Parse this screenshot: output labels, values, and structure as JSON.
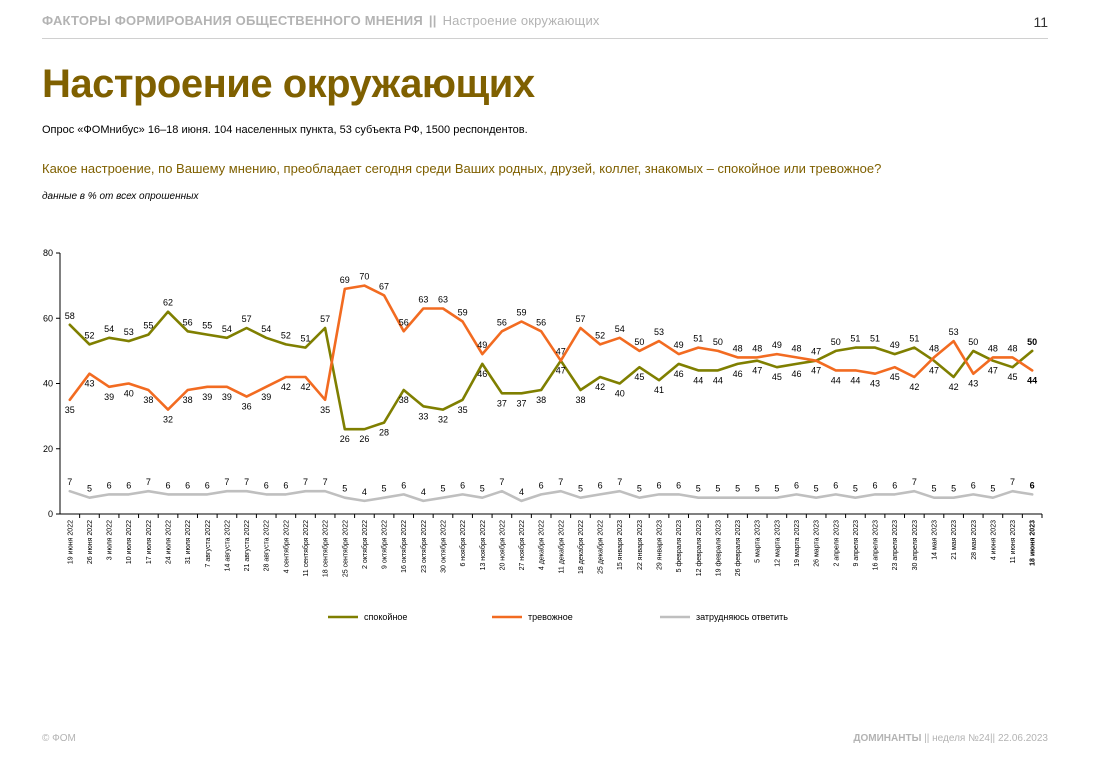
{
  "header": {
    "section": "ФАКТОРЫ ФОРМИРОВАНИЯ ОБЩЕСТВЕННОГО МНЕНИЯ",
    "separator": "||",
    "topic": "Настроение окружающих",
    "page_number": "11"
  },
  "title": "Настроение окружающих",
  "survey_note": "Опрос «ФОМнибус» 16–18 июня. 104 населенных пункта, 53 субъекта РФ, 1500 респондентов.",
  "question": "Какое настроение, по Вашему мнению, преобладает сегодня среди Ваших родных, друзей, коллег, знакомых – спокойное или тревожное?",
  "units_note": "данные в % от всех опрошенных",
  "footer": {
    "left": "© ФОМ",
    "right_brand": "ДОМИНАНТЫ",
    "right_sep": "||",
    "right_week": "неделя №24",
    "right_sep2": "||",
    "right_date": "22.06.2023"
  },
  "chart_data": {
    "type": "line",
    "ylim": [
      0,
      80
    ],
    "yticks": [
      0,
      20,
      40,
      60,
      80
    ],
    "grid": false,
    "legend_position": "bottom",
    "x": [
      "19 июня 2022",
      "26 июня 2022",
      "3 июля 2022",
      "10 июля 2022",
      "17 июля 2022",
      "24 июля 2022",
      "31 июля 2022",
      "7 августа 2022",
      "14 августа 2022",
      "21 августа 2022",
      "28 августа 2022",
      "4 сентября 2022",
      "11 сентября 2022",
      "18 сентября 2022",
      "25 сентября 2022",
      "2 октября 2022",
      "9 октября 2022",
      "16 октября 2022",
      "23 октября 2022",
      "30 октября 2022",
      "6 ноября 2022",
      "13 ноября 2022",
      "20 ноября 2022",
      "27 ноября 2022",
      "4 декабря 2022",
      "11 декабря 2022",
      "18 декабря 2022",
      "25 декабря 2022",
      "15 января 2023",
      "22 января 2023",
      "29 января 2023",
      "5 февраля 2023",
      "12 февраля 2023",
      "19 февраля 2023",
      "26 февраля 2023",
      "5 марта 2023",
      "12 марта 2023",
      "19 марта 2023",
      "26 марта 2023",
      "2 апреля 2023",
      "9 апреля 2023",
      "16 апреля 2023",
      "23 апреля 2023",
      "30 апреля 2023",
      "14 мая 2023",
      "21 мая 2023",
      "28 мая 2023",
      "4 июня 2023",
      "11 июня 2023",
      "18 июня 2023"
    ],
    "series": [
      {
        "name": "спокойное",
        "color": "#7f7f00",
        "values": [
          58,
          52,
          54,
          53,
          55,
          62,
          56,
          55,
          54,
          57,
          54,
          52,
          51,
          57,
          26,
          26,
          28,
          38,
          33,
          32,
          35,
          46,
          37,
          37,
          38,
          47,
          38,
          42,
          40,
          45,
          41,
          46,
          44,
          44,
          46,
          47,
          45,
          46,
          47,
          50,
          51,
          51,
          49,
          51,
          47,
          42,
          50,
          47,
          45,
          50
        ]
      },
      {
        "name": "тревожное",
        "color": "#f26b21",
        "values": [
          35,
          43,
          39,
          40,
          38,
          32,
          38,
          39,
          39,
          36,
          39,
          42,
          42,
          35,
          69,
          70,
          67,
          56,
          63,
          63,
          59,
          49,
          56,
          59,
          56,
          47,
          57,
          52,
          54,
          50,
          53,
          49,
          51,
          50,
          48,
          48,
          49,
          48,
          47,
          44,
          44,
          43,
          45,
          42,
          48,
          53,
          43,
          48,
          48,
          44
        ]
      },
      {
        "name": "затрудняюсь ответить",
        "color": "#bfbfbf",
        "values": [
          7,
          5,
          6,
          6,
          7,
          6,
          6,
          6,
          7,
          7,
          6,
          6,
          7,
          7,
          5,
          4,
          5,
          6,
          4,
          5,
          6,
          5,
          7,
          4,
          6,
          7,
          5,
          6,
          7,
          5,
          6,
          6,
          5,
          5,
          5,
          5,
          5,
          6,
          5,
          6,
          5,
          6,
          6,
          7,
          5,
          5,
          6,
          5,
          7,
          6
        ]
      }
    ],
    "last_point_bold": true
  }
}
